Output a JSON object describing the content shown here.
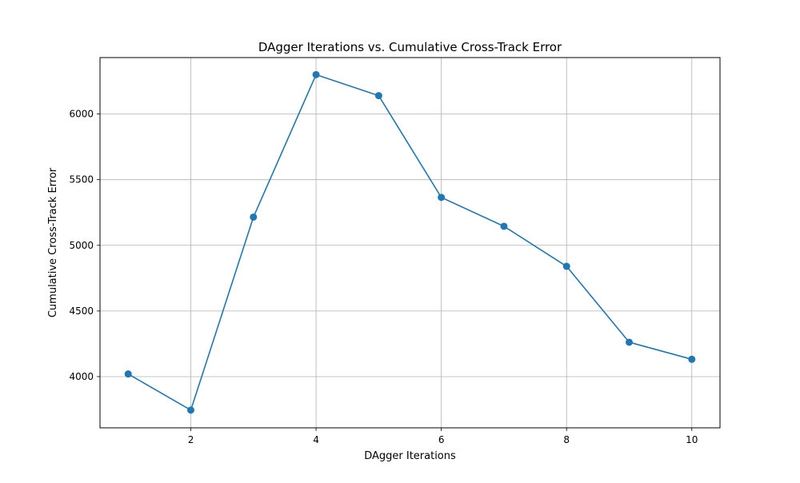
{
  "chart_data": {
    "type": "line",
    "title": "DAgger Iterations vs. Cumulative Cross-Track Error",
    "xlabel": "DAgger Iterations",
    "ylabel": "Cumulative Cross-Track Error",
    "x": [
      1,
      2,
      3,
      4,
      5,
      6,
      7,
      8,
      9,
      10
    ],
    "series": [
      {
        "values": [
          4020,
          3745,
          5215,
          6300,
          6140,
          5365,
          5145,
          4840,
          4262,
          4132
        ],
        "color": "#1f77b4",
        "marker": "circle"
      }
    ],
    "xlim": [
      0.55,
      10.45
    ],
    "ylim": [
      3610,
      6430
    ],
    "xticks": [
      2,
      4,
      6,
      8,
      10
    ],
    "xtick_labels": [
      "2",
      "4",
      "6",
      "8",
      "10"
    ],
    "yticks": [
      4000,
      4500,
      5000,
      5500,
      6000
    ],
    "ytick_labels": [
      "4000",
      "4500",
      "5000",
      "5500",
      "6000"
    ],
    "grid": true,
    "legend": "none"
  }
}
